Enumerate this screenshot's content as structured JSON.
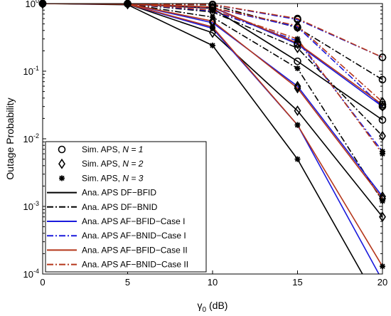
{
  "chart_data": {
    "type": "line",
    "yscale": "log",
    "xlabel_symbol": "γ",
    "xlabel_subscript": "0",
    "xlabel_unit": "(dB)",
    "ylabel": "Outage Probability",
    "xlim": [
      0,
      20
    ],
    "ylim": [
      0.0001,
      1
    ],
    "xticks": [
      "0",
      "5",
      "10",
      "15",
      "20"
    ],
    "yticks": [
      {
        "base": "10",
        "exp": "0",
        "value": 1
      },
      {
        "base": "10",
        "exp": "-1",
        "value": 0.1
      },
      {
        "base": "10",
        "exp": "-2",
        "value": 0.01
      },
      {
        "base": "10",
        "exp": "-3",
        "value": 0.001
      },
      {
        "base": "10",
        "exp": "-4",
        "value": 0.0001
      }
    ],
    "grid": false,
    "legend_position": "lower-left",
    "legend": [
      {
        "prefix": "Sim. APS, ",
        "italic": "N = 1",
        "kind": "marker",
        "marker": "circle"
      },
      {
        "prefix": "Sim. APS, ",
        "italic": "N = 2",
        "kind": "marker",
        "marker": "diamond"
      },
      {
        "prefix": "Sim. APS, ",
        "italic": "N = 3",
        "kind": "marker",
        "marker": "star"
      },
      {
        "prefix": "Ana. APS DF−BFID",
        "italic": "",
        "kind": "line",
        "color": "#000000",
        "dash": "solid"
      },
      {
        "prefix": "Ana. APS DF−BNID",
        "italic": "",
        "kind": "line",
        "color": "#000000",
        "dash": "dashdot"
      },
      {
        "prefix": "Ana. APS AF−BFID−Case I",
        "italic": "",
        "kind": "line",
        "color": "#1a1adc",
        "dash": "solid"
      },
      {
        "prefix": "Ana. APS AF−BNID−Case I",
        "italic": "",
        "kind": "line",
        "color": "#1a1adc",
        "dash": "dashdot"
      },
      {
        "prefix": "Ana. APS AF−BFID−Case II",
        "italic": "",
        "kind": "line",
        "color": "#b5361a",
        "dash": "solid"
      },
      {
        "prefix": "Ana. APS AF−BNID−Case II",
        "italic": "",
        "kind": "line",
        "color": "#b5361a",
        "dash": "dashdot"
      }
    ],
    "x": [
      0,
      5,
      10,
      15,
      20
    ],
    "series": [
      {
        "color": "#000000",
        "dash": "solid",
        "marker": "circle",
        "values": [
          1,
          0.99,
          0.85,
          0.14,
          0.019
        ]
      },
      {
        "color": "#000000",
        "dash": "solid",
        "marker": "diamond",
        "values": [
          1,
          0.98,
          0.37,
          0.026,
          0.0007
        ]
      },
      {
        "color": "#000000",
        "dash": "solid",
        "marker": "star",
        "values": [
          1,
          0.96,
          0.24,
          0.005,
          3e-05
        ]
      },
      {
        "color": "#000000",
        "dash": "dashdot",
        "marker": "circle",
        "values": [
          1,
          0.995,
          0.95,
          0.44,
          0.075
        ]
      },
      {
        "color": "#000000",
        "dash": "dashdot",
        "marker": "diamond",
        "values": [
          1,
          0.99,
          0.75,
          0.22,
          0.011
        ]
      },
      {
        "color": "#000000",
        "dash": "dashdot",
        "marker": "star",
        "values": [
          1,
          0.985,
          0.63,
          0.11,
          0.0012
        ]
      },
      {
        "color": "#1a1adc",
        "dash": "solid",
        "marker": "circle",
        "values": [
          1,
          0.995,
          0.88,
          0.25,
          0.03
        ]
      },
      {
        "color": "#1a1adc",
        "dash": "solid",
        "marker": "diamond",
        "values": [
          1,
          0.99,
          0.52,
          0.06,
          0.0014
        ]
      },
      {
        "color": "#1a1adc",
        "dash": "solid",
        "marker": "star",
        "values": [
          1,
          0.98,
          0.43,
          0.016,
          8e-05
        ]
      },
      {
        "color": "#1a1adc",
        "dash": "dashdot",
        "marker": "circle",
        "values": [
          1,
          0.998,
          0.97,
          0.58,
          0.16
        ]
      },
      {
        "color": "#1a1adc",
        "dash": "dashdot",
        "marker": "diamond",
        "values": [
          1,
          0.995,
          0.86,
          0.45,
          0.03
        ]
      },
      {
        "color": "#1a1adc",
        "dash": "dashdot",
        "marker": "star",
        "values": [
          1,
          0.99,
          0.78,
          0.28,
          0.0065
        ]
      },
      {
        "color": "#b5361a",
        "dash": "solid",
        "marker": "circle",
        "values": [
          1,
          0.995,
          0.89,
          0.26,
          0.032
        ]
      },
      {
        "color": "#b5361a",
        "dash": "solid",
        "marker": "diamond",
        "values": [
          1,
          0.99,
          0.55,
          0.056,
          0.0013
        ]
      },
      {
        "color": "#b5361a",
        "dash": "solid",
        "marker": "star",
        "values": [
          1,
          0.98,
          0.45,
          0.016,
          0.00013
        ]
      },
      {
        "color": "#b5361a",
        "dash": "dashdot",
        "marker": "circle",
        "values": [
          1,
          0.998,
          0.97,
          0.6,
          0.16
        ]
      },
      {
        "color": "#b5361a",
        "dash": "dashdot",
        "marker": "diamond",
        "values": [
          1,
          0.995,
          0.87,
          0.47,
          0.035
        ]
      },
      {
        "color": "#b5361a",
        "dash": "dashdot",
        "marker": "star",
        "values": [
          1,
          0.99,
          0.8,
          0.3,
          0.006
        ]
      }
    ]
  }
}
